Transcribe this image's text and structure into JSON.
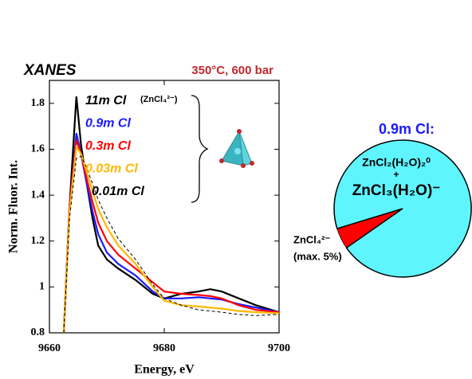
{
  "chart_data": [
    {
      "type": "line",
      "title": "XANES",
      "subtitle": "350°C, 600 bar",
      "xlabel": "Energy, eV",
      "ylabel": "Norm. Fluor. Int.",
      "annotation": "(ZnCl₄²⁻)",
      "x": [
        9662.5,
        9663.5,
        9664.7,
        9665.5,
        9666.5,
        9667.5,
        9668.5,
        9670,
        9672,
        9675,
        9678,
        9680,
        9683,
        9686,
        9688,
        9690,
        9693,
        9696,
        9700
      ],
      "series": [
        {
          "name": "11m Cl",
          "color": "#000000",
          "dashed": false,
          "values": [
            0.8,
            1.35,
            1.83,
            1.62,
            1.45,
            1.3,
            1.18,
            1.12,
            1.08,
            1.03,
            0.97,
            0.95,
            0.97,
            0.98,
            0.99,
            0.98,
            0.95,
            0.92,
            0.89
          ]
        },
        {
          "name": "0.9m Cl",
          "color": "#1a1aff",
          "dashed": false,
          "values": [
            0.8,
            1.35,
            1.67,
            1.58,
            1.45,
            1.33,
            1.23,
            1.15,
            1.1,
            1.05,
            0.98,
            0.95,
            0.95,
            0.955,
            0.95,
            0.945,
            0.925,
            0.91,
            0.89
          ]
        },
        {
          "name": "0.3m Cl",
          "color": "#ff0000",
          "dashed": false,
          "values": [
            0.8,
            1.35,
            1.64,
            1.58,
            1.47,
            1.37,
            1.28,
            1.2,
            1.14,
            1.08,
            1.02,
            0.98,
            0.97,
            0.965,
            0.96,
            0.95,
            0.92,
            0.9,
            0.89
          ]
        },
        {
          "name": "0.03m Cl",
          "color": "#ffb800",
          "dashed": false,
          "values": [
            0.8,
            1.33,
            1.61,
            1.58,
            1.5,
            1.42,
            1.34,
            1.26,
            1.18,
            1.1,
            1.0,
            0.94,
            0.92,
            0.915,
            0.91,
            0.905,
            0.895,
            0.89,
            0.885
          ]
        },
        {
          "name": "0.01m Cl",
          "color": "#000000",
          "dashed": true,
          "values": [
            0.8,
            1.3,
            1.56,
            1.57,
            1.52,
            1.45,
            1.38,
            1.3,
            1.21,
            1.12,
            1.01,
            0.95,
            0.92,
            0.9,
            0.895,
            0.89,
            0.88,
            0.875,
            0.88
          ]
        }
      ],
      "xlim": [
        9660,
        9700
      ],
      "xticks": [
        9660,
        9680,
        9700
      ],
      "ylim": [
        0.8,
        1.9
      ],
      "yticks": [
        0.8,
        1,
        1.2,
        1.4,
        1.6,
        1.8
      ]
    },
    {
      "type": "pie",
      "title": "0.9m Cl:",
      "categories": [
        [
          "ZnCl₂(H₂O)₂⁰",
          "+",
          "ZnCl₃(H₂O)⁻"
        ],
        [
          "ZnCl₄²⁻",
          "(max. 5%)"
        ]
      ],
      "values": [
        95,
        5
      ],
      "colors": [
        "#5ff5ff",
        "#ff0000"
      ]
    }
  ]
}
